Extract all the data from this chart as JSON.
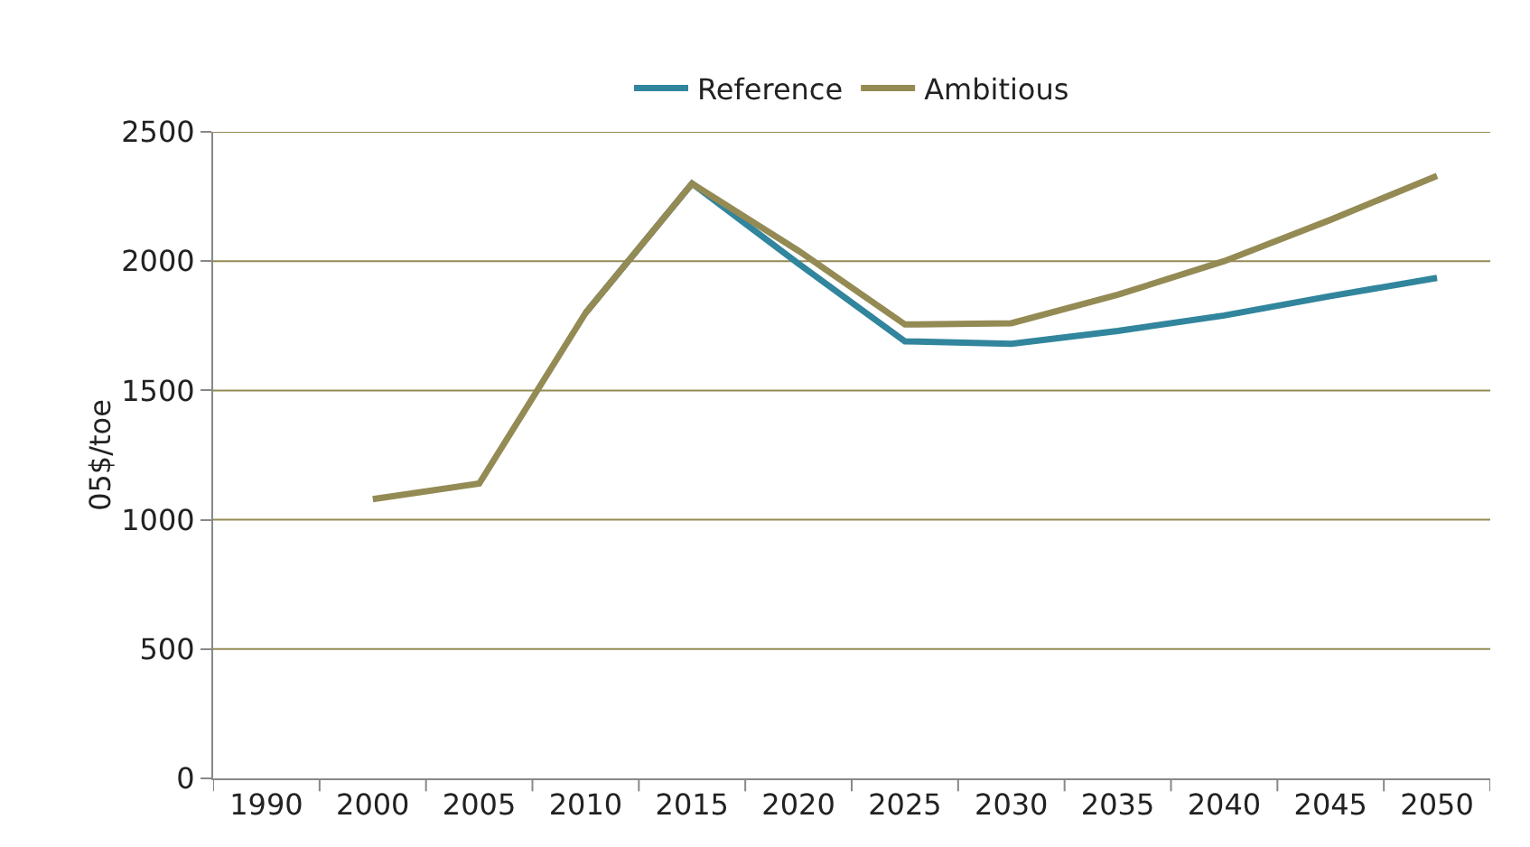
{
  "chart_data": {
    "type": "line",
    "ylabel": "05$/toe",
    "categories": [
      "1990",
      "2000",
      "2005",
      "2010",
      "2015",
      "2020",
      "2025",
      "2030",
      "2035",
      "2040",
      "2045",
      "2050"
    ],
    "series": [
      {
        "name": "Reference",
        "color": "#31859c",
        "values": [
          null,
          null,
          null,
          1800,
          2300,
          1990,
          1690,
          1680,
          1730,
          1790,
          1865,
          1935
        ]
      },
      {
        "name": "Ambitious",
        "color": "#948a54",
        "values": [
          null,
          1080,
          1140,
          1800,
          2300,
          2040,
          1755,
          1760,
          1870,
          2000,
          2160,
          2330
        ]
      }
    ],
    "ylim": [
      0,
      2500
    ],
    "yticks": [
      0,
      500,
      1000,
      1500,
      2000,
      2500
    ],
    "grid": "y",
    "legend": "top",
    "marker": "none"
  }
}
